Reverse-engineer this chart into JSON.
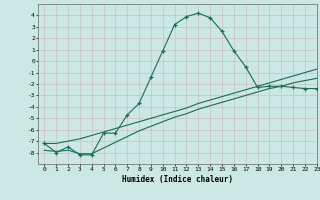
{
  "xlabel": "Humidex (Indice chaleur)",
  "ylabel": "",
  "bg_color": "#cce8e4",
  "line_color": "#1a6b5a",
  "grid_color": "#b0c8c4",
  "x_humidex": [
    0,
    1,
    2,
    3,
    4,
    5,
    6,
    7,
    8,
    9,
    10,
    11,
    12,
    13,
    14,
    15,
    16,
    17,
    18,
    19,
    20,
    21,
    22,
    23
  ],
  "y_curve1": [
    -7.2,
    -8.0,
    -7.5,
    -8.2,
    -8.2,
    -6.3,
    -6.3,
    -4.7,
    -3.7,
    -1.4,
    0.9,
    3.2,
    3.9,
    4.2,
    3.8,
    2.6,
    0.9,
    -0.5,
    -2.3,
    -2.2,
    -2.2,
    -2.3,
    -2.4,
    -2.4
  ],
  "y_line1": [
    -7.2,
    -7.2,
    -7.0,
    -6.8,
    -6.5,
    -6.2,
    -5.9,
    -5.6,
    -5.3,
    -5.0,
    -4.7,
    -4.4,
    -4.1,
    -3.7,
    -3.4,
    -3.1,
    -2.8,
    -2.5,
    -2.2,
    -1.9,
    -1.6,
    -1.3,
    -1.0,
    -0.7
  ],
  "y_line2": [
    -7.8,
    -7.9,
    -7.8,
    -8.1,
    -8.1,
    -7.6,
    -7.1,
    -6.6,
    -6.1,
    -5.7,
    -5.3,
    -4.9,
    -4.6,
    -4.2,
    -3.9,
    -3.6,
    -3.3,
    -3.0,
    -2.7,
    -2.4,
    -2.2,
    -1.9,
    -1.7,
    -1.5
  ],
  "ylim": [
    -9,
    5
  ],
  "yticks": [
    -8,
    -7,
    -6,
    -5,
    -4,
    -3,
    -2,
    -1,
    0,
    1,
    2,
    3,
    4
  ],
  "xlim": [
    -0.5,
    23
  ],
  "xticks": [
    0,
    1,
    2,
    3,
    4,
    5,
    6,
    7,
    8,
    9,
    10,
    11,
    12,
    13,
    14,
    15,
    16,
    17,
    18,
    19,
    20,
    21,
    22,
    23
  ]
}
